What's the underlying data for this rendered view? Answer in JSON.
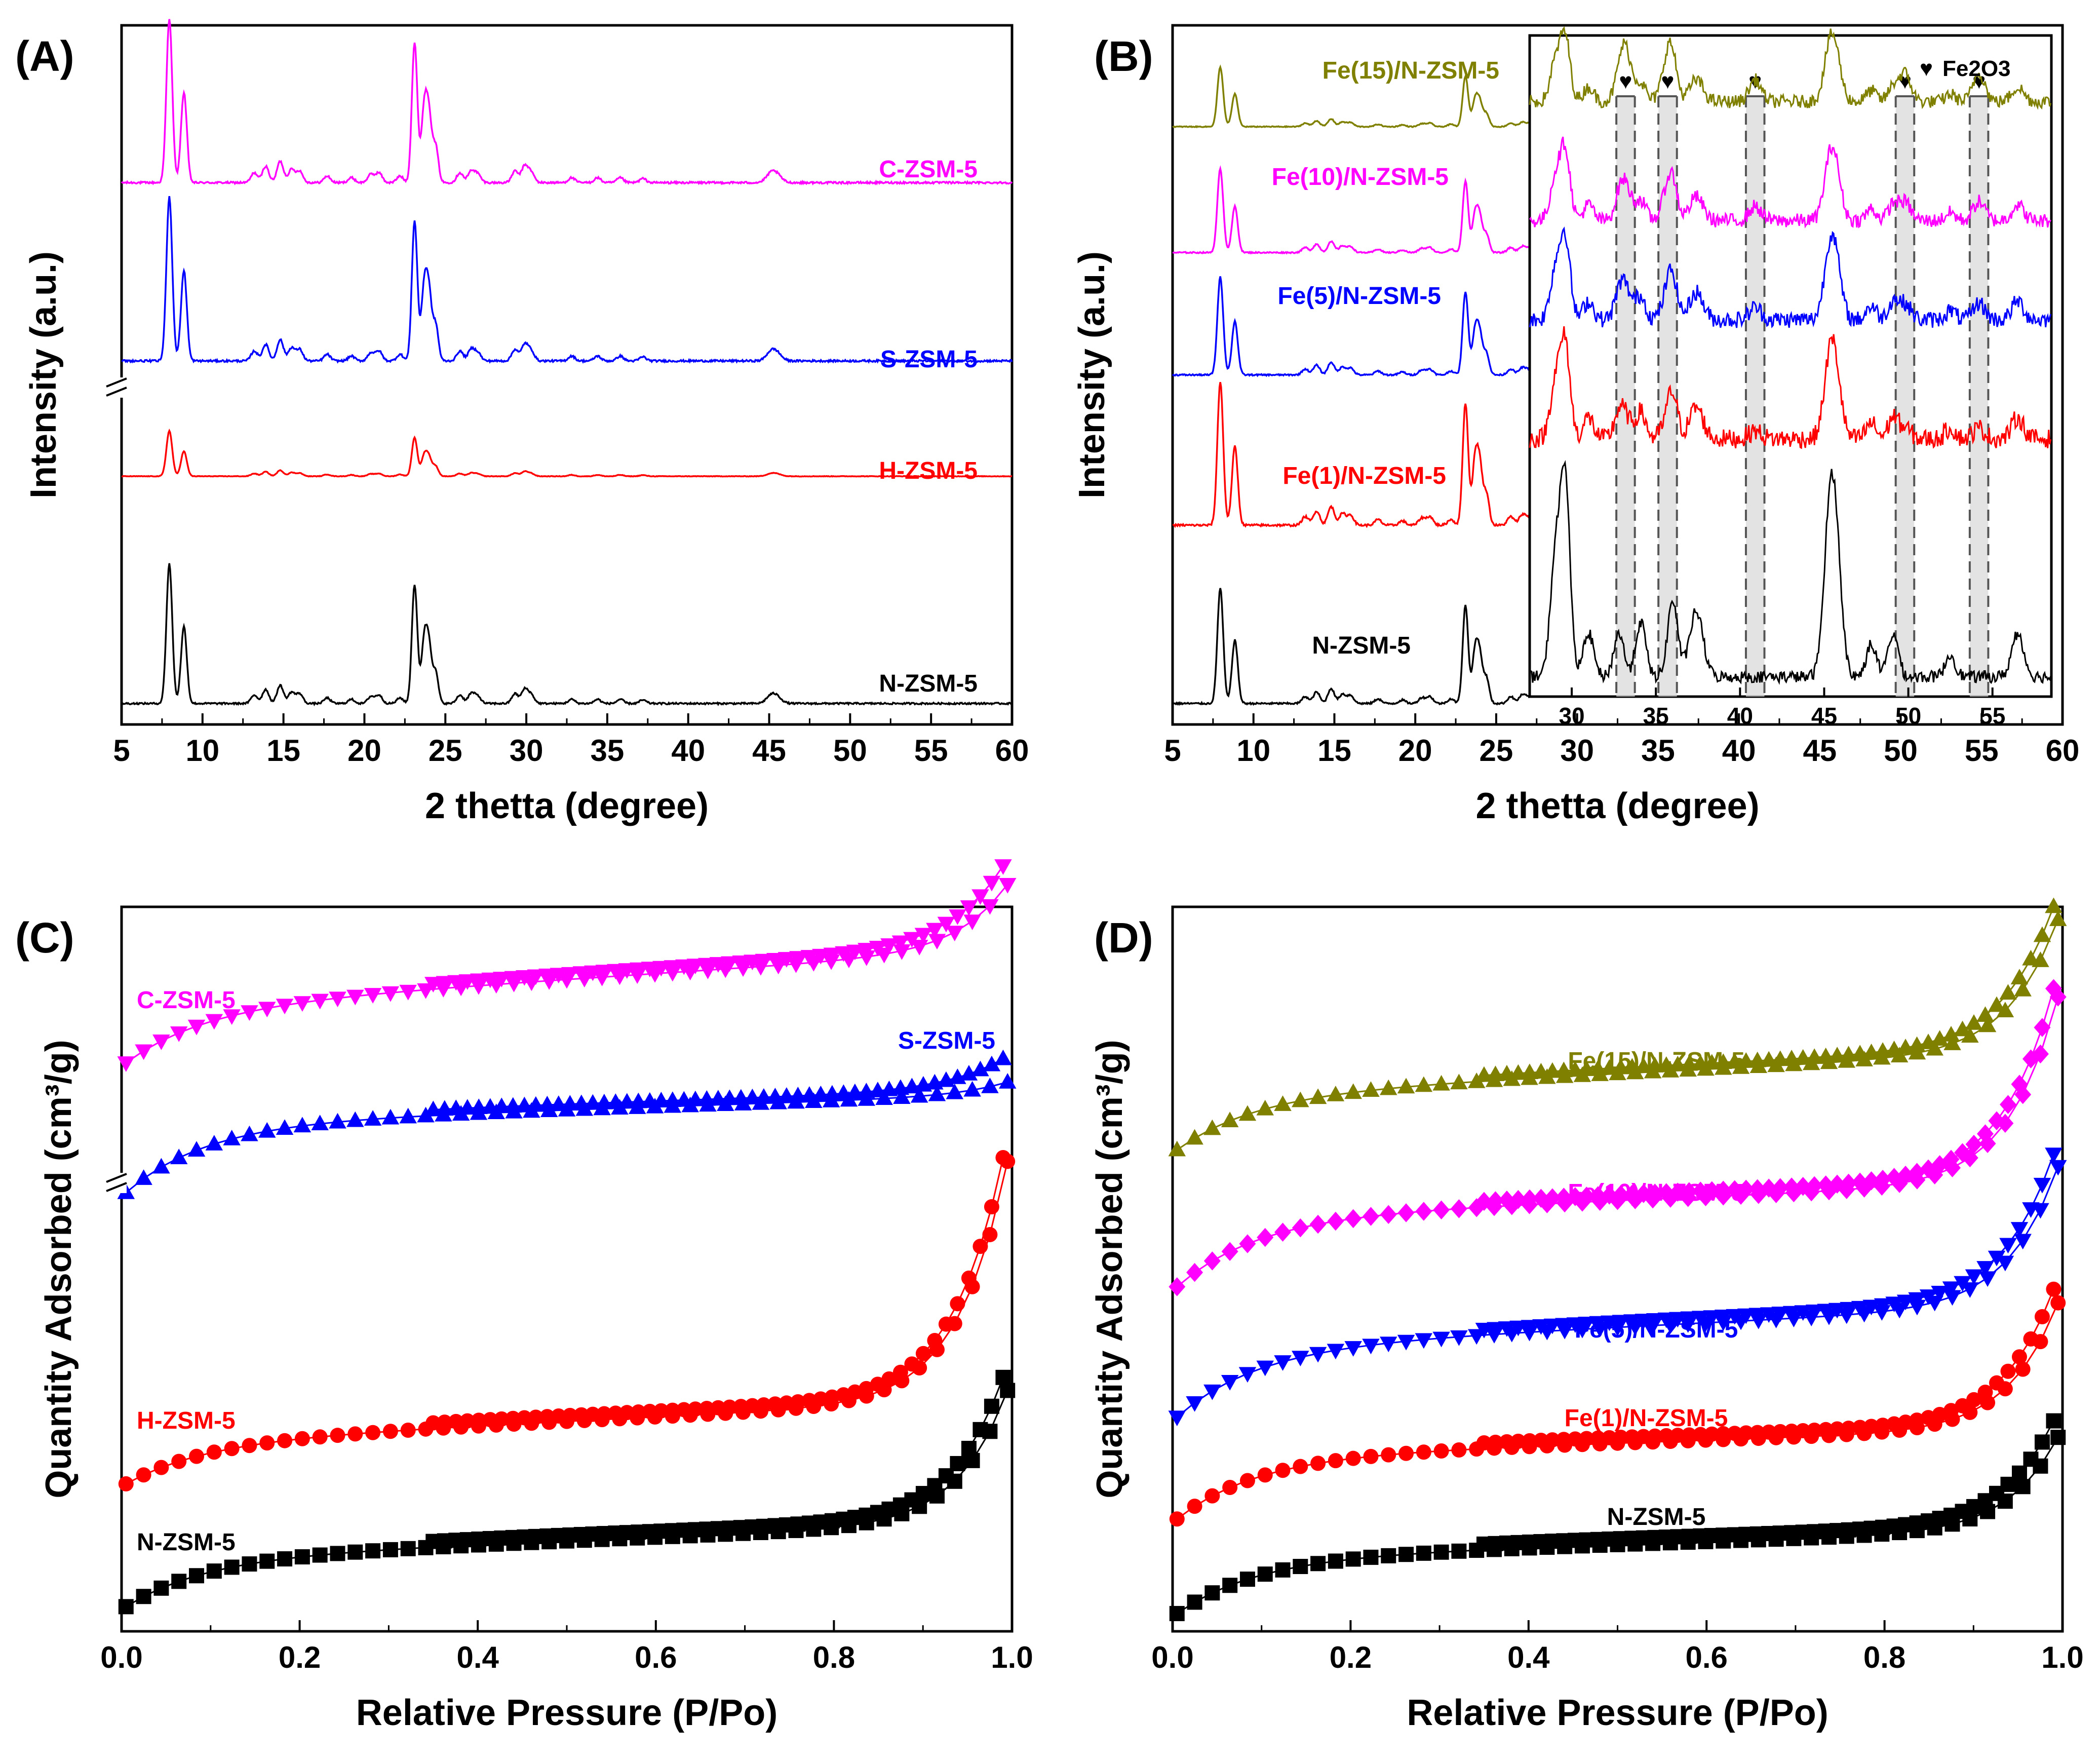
{
  "chart_data": [
    {
      "type": "line",
      "panel": "(A)",
      "xlabel": "2 thetta (degree)",
      "ylabel": "Intensity (a.u.)",
      "xlim": [
        5,
        60
      ],
      "xticks": [
        "5",
        "10",
        "15",
        "20",
        "25",
        "30",
        "35",
        "40",
        "45",
        "50",
        "55",
        "60"
      ],
      "axis_break": true,
      "series": [
        {
          "name": "C-ZSM-5",
          "color": "#ff00ff",
          "baseline": 0.775,
          "scale": 0.235
        },
        {
          "name": "S-ZSM-5",
          "color": "#0000ff",
          "baseline": 0.52,
          "scale": 0.235
        },
        {
          "name": "H-ZSM-5",
          "color": "#ff0000",
          "baseline": 0.355,
          "scale": 0.065
        },
        {
          "name": "N-ZSM-5",
          "color": "#000000",
          "baseline": 0.03,
          "scale": 0.2
        }
      ]
    },
    {
      "type": "line",
      "panel": "(B)",
      "xlabel": "2 thetta (degree)",
      "ylabel": "Intensity (a.u.)",
      "xlim": [
        5,
        60
      ],
      "xticks": [
        "5",
        "10",
        "15",
        "20",
        "25",
        "30",
        "35",
        "40",
        "45",
        "50",
        "55",
        "60"
      ],
      "series": [
        {
          "name": "Fe(15)/N-ZSM-5",
          "color": "#808000",
          "baseline": 0.855,
          "scale": 0.085
        },
        {
          "name": "Fe(10)/N-ZSM-5",
          "color": "#ff00ff",
          "baseline": 0.675,
          "scale": 0.12
        },
        {
          "name": "Fe(5)/N-ZSM-5",
          "color": "#0000ff",
          "baseline": 0.5,
          "scale": 0.14
        },
        {
          "name": "Fe(1)/N-ZSM-5",
          "color": "#ff0000",
          "baseline": 0.285,
          "scale": 0.205
        },
        {
          "name": "N-ZSM-5",
          "color": "#000000",
          "baseline": 0.03,
          "scale": 0.165
        }
      ],
      "inset": {
        "xlim": [
          27.5,
          58.5
        ],
        "xticks": [
          "30",
          "35",
          "40",
          "45",
          "50",
          "55"
        ],
        "legend": "Fe2O3",
        "fe2o3_peaks": [
          33.2,
          35.7,
          40.9,
          49.8,
          54.2
        ]
      }
    },
    {
      "type": "scatter",
      "panel": "(C)",
      "xlabel": "Relative Pressure (P/Po)",
      "ylabel": "Quantity Adsorbed (cm³/g)",
      "xlim": [
        0.0,
        1.0
      ],
      "xticks": [
        "0.0",
        "0.2",
        "0.4",
        "0.6",
        "0.8",
        "1.0"
      ],
      "axis_break": true,
      "series": [
        {
          "name": "C-ZSM-5",
          "color": "#ff00ff",
          "marker": "triangle-down",
          "y0": 0.78,
          "knee": 0.08,
          "slope": 0.08,
          "upturn": 0.1
        },
        {
          "name": "S-ZSM-5",
          "color": "#0000ff",
          "marker": "triangle-up",
          "y0": 0.6,
          "knee": 0.1,
          "slope": 0.04,
          "upturn": 0.02
        },
        {
          "name": "H-ZSM-5",
          "color": "#ff0000",
          "marker": "circle",
          "y0": 0.2,
          "knee": 0.06,
          "slope": 0.06,
          "upturn": 0.36
        },
        {
          "name": "N-ZSM-5",
          "color": "#000000",
          "marker": "square",
          "y0": 0.03,
          "knee": 0.07,
          "slope": 0.05,
          "upturn": 0.2
        }
      ]
    },
    {
      "type": "scatter",
      "panel": "(D)",
      "xlabel": "Relative Pressure (P/Po)",
      "ylabel": "Quantity Adsorbed (cm³/g)",
      "xlim": [
        0.0,
        1.0
      ],
      "xticks": [
        "0.0",
        "0.2",
        "0.4",
        "0.6",
        "0.8",
        "1.0"
      ],
      "series": [
        {
          "name": "Fe(15)/N-ZSM-5",
          "color": "#808000",
          "marker": "triangle-up",
          "y0": 0.66,
          "knee": 0.08,
          "slope": 0.06,
          "upturn": 0.2
        },
        {
          "name": "Fe(10)/N-ZSM-5",
          "color": "#ff00ff",
          "marker": "diamond",
          "y0": 0.47,
          "knee": 0.1,
          "slope": 0.05,
          "upturn": 0.28
        },
        {
          "name": "Fe(5)/N-ZSM-5",
          "color": "#0000ff",
          "marker": "triangle-down",
          "y0": 0.29,
          "knee": 0.1,
          "slope": 0.06,
          "upturn": 0.21
        },
        {
          "name": "Fe(1)/N-ZSM-5",
          "color": "#ff0000",
          "marker": "circle",
          "y0": 0.15,
          "knee": 0.09,
          "slope": 0.04,
          "upturn": 0.19
        },
        {
          "name": "N-ZSM-5",
          "color": "#000000",
          "marker": "square",
          "y0": 0.02,
          "knee": 0.08,
          "slope": 0.04,
          "upturn": 0.14
        }
      ]
    }
  ]
}
